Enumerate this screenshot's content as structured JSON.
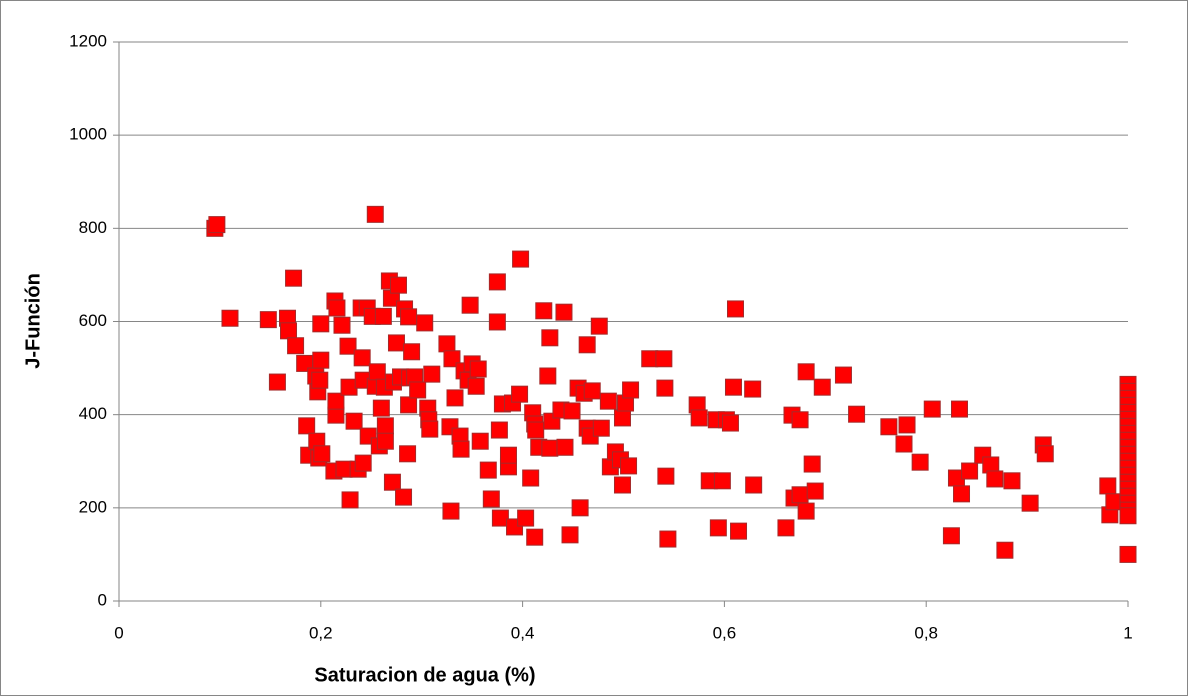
{
  "chart_data": {
    "type": "scatter",
    "xlabel": "Saturacion de agua (%)",
    "ylabel": "J-Función",
    "color": "#ff0000",
    "xlim": [
      0,
      1
    ],
    "xticks": [
      0,
      {
        "value": 0.2,
        "label": "0,2"
      },
      {
        "value": 0.4,
        "label": "0,4"
      },
      {
        "value": 0.6,
        "label": "0,6"
      },
      {
        "value": 0.8,
        "label": "0,8"
      },
      1
    ],
    "ylim": [
      0,
      1200
    ],
    "yticks": [
      0,
      200,
      400,
      600,
      800,
      1000,
      1200
    ],
    "grid": true,
    "x": [
      0.095,
      0.097,
      0.11,
      0.148,
      0.157,
      0.167,
      0.168,
      0.173,
      0.175,
      0.184,
      0.186,
      0.188,
      0.195,
      0.197,
      0.196,
      0.198,
      0.2,
      0.2,
      0.199,
      0.201,
      0.213,
      0.214,
      0.216,
      0.215,
      0.215,
      0.221,
      0.223,
      0.227,
      0.228,
      0.229,
      0.233,
      0.237,
      0.24,
      0.241,
      0.242,
      0.242,
      0.246,
      0.247,
      0.254,
      0.251,
      0.254,
      0.256,
      0.258,
      0.26,
      0.262,
      0.263,
      0.264,
      0.264,
      0.268,
      0.27,
      0.271,
      0.272,
      0.275,
      0.277,
      0.279,
      0.282,
      0.283,
      0.286,
      0.287,
      0.287,
      0.288,
      0.29,
      0.293,
      0.296,
      0.303,
      0.306,
      0.307,
      0.308,
      0.31,
      0.325,
      0.328,
      0.329,
      0.33,
      0.333,
      0.338,
      0.339,
      0.342,
      0.346,
      0.348,
      0.35,
      0.354,
      0.356,
      0.358,
      0.366,
      0.369,
      0.375,
      0.375,
      0.377,
      0.378,
      0.38,
      0.386,
      0.386,
      0.39,
      0.392,
      0.397,
      0.398,
      0.403,
      0.408,
      0.41,
      0.412,
      0.412,
      0.413,
      0.416,
      0.421,
      0.425,
      0.427,
      0.427,
      0.429,
      0.438,
      0.441,
      0.442,
      0.447,
      0.449,
      0.455,
      0.457,
      0.461,
      0.464,
      0.464,
      0.467,
      0.469,
      0.476,
      0.478,
      0.485,
      0.487,
      0.492,
      0.497,
      0.499,
      0.499,
      0.502,
      0.505,
      0.507,
      0.526,
      0.54,
      0.541,
      0.542,
      0.544,
      0.573,
      0.575,
      0.585,
      0.592,
      0.594,
      0.598,
      0.602,
      0.606,
      0.609,
      0.611,
      0.614,
      0.628,
      0.629,
      0.661,
      0.667,
      0.669,
      0.675,
      0.675,
      0.681,
      0.681,
      0.687,
      0.69,
      0.697,
      0.718,
      0.731,
      0.763,
      0.778,
      0.781,
      0.794,
      0.806,
      0.825,
      0.83,
      0.833,
      0.835,
      0.843,
      0.856,
      0.864,
      0.868,
      0.878,
      0.885,
      0.903,
      0.916,
      0.918,
      0.98,
      0.982,
      0.986,
      1,
      1,
      1,
      1,
      1,
      1,
      1,
      1,
      1,
      1,
      1,
      1,
      1,
      1,
      1,
      1,
      1,
      1,
      1,
      1,
      1
    ],
    "values": [
      800,
      808,
      607,
      604,
      470,
      607,
      580,
      693,
      548,
      510,
      376,
      313,
      483,
      449,
      343,
      307,
      595,
      517,
      474,
      316,
      279,
      644,
      629,
      399,
      429,
      592,
      283,
      547,
      459,
      217,
      386,
      283,
      629,
      522,
      474,
      296,
      629,
      354,
      830,
      611,
      461,
      492,
      333,
      414,
      611,
      459,
      376,
      343,
      687,
      650,
      255,
      470,
      554,
      678,
      481,
      223,
      627,
      316,
      610,
      421,
      479,
      535,
      481,
      453,
      597,
      414,
      389,
      369,
      487,
      552,
      374,
      193,
      520,
      436,
      354,
      326,
      494,
      474,
      635,
      509,
      461,
      498,
      343,
      281,
      219,
      685,
      599,
      367,
      178,
      423,
      288,
      313,
      425,
      159,
      444,
      734,
      178,
      264,
      404,
      380,
      137,
      367,
      330,
      623,
      483,
      565,
      328,
      386,
      410,
      620,
      330,
      142,
      408,
      457,
      200,
      446,
      371,
      550,
      354,
      451,
      590,
      371,
      429,
      288,
      320,
      303,
      249,
      393,
      425,
      290,
      453,
      520,
      520,
      457,
      268,
      133,
      421,
      393,
      258,
      389,
      157,
      258,
      389,
      382,
      459,
      627,
      150,
      455,
      249,
      157,
      399,
      221,
      228,
      389,
      492,
      193,
      294,
      236,
      459,
      485,
      401,
      374,
      337,
      378,
      298,
      412,
      140,
      264,
      412,
      230,
      279,
      313,
      292,
      262,
      109,
      258,
      210,
      335,
      316,
      247,
      185,
      213,
      465,
      450,
      435,
      420,
      405,
      390,
      375,
      360,
      345,
      330,
      315,
      300,
      285,
      270,
      255,
      240,
      225,
      210,
      195,
      183,
      100
    ]
  }
}
